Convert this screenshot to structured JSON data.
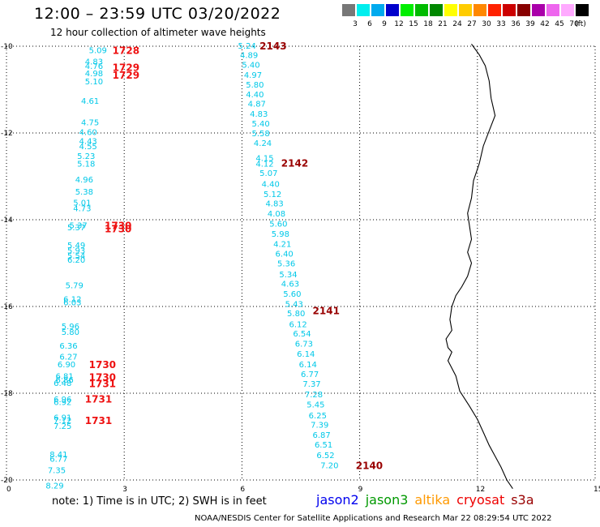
{
  "header": {
    "title": "12:00 – 23:59 UTC 03/20/2022",
    "subtitle": "12 hour collection of altimeter wave heights"
  },
  "legend": {
    "unit": "(ft)",
    "bins": [
      {
        "label": "3",
        "color": "#777777"
      },
      {
        "label": "6",
        "color": "#00eeee"
      },
      {
        "label": "9",
        "color": "#00aaee"
      },
      {
        "label": "12",
        "color": "#0000cc"
      },
      {
        "label": "15",
        "color": "#00ee00"
      },
      {
        "label": "18",
        "color": "#00bb00"
      },
      {
        "label": "21",
        "color": "#008800"
      },
      {
        "label": "24",
        "color": "#ffff00"
      },
      {
        "label": "27",
        "color": "#ffcc00"
      },
      {
        "label": "30",
        "color": "#ff8800"
      },
      {
        "label": "33",
        "color": "#ff2200"
      },
      {
        "label": "36",
        "color": "#cc0000"
      },
      {
        "label": "39",
        "color": "#880000"
      },
      {
        "label": "42",
        "color": "#aa00aa"
      },
      {
        "label": "45",
        "color": "#ee66ee"
      },
      {
        "label": "70",
        "color": "#ffaaff"
      },
      {
        "label": "",
        "color": "#000000"
      }
    ]
  },
  "axes": {
    "lat_labels": [
      "-10",
      "-12",
      "-14",
      "-16",
      "-18",
      "-20"
    ],
    "lon_labels": [
      "0",
      "3",
      "6",
      "9",
      "12",
      "15"
    ]
  },
  "tracks": {
    "west": {
      "color": "#00c8e8",
      "points": [
        {
          "lon": 2.1,
          "lat": -10.08,
          "v": "5.09"
        },
        {
          "lon": 2.0,
          "lat": -10.35,
          "v": "4.83"
        },
        {
          "lon": 2.0,
          "lat": -10.45,
          "v": "4.76"
        },
        {
          "lon": 2.0,
          "lat": -10.62,
          "v": "4.98"
        },
        {
          "lon": 2.0,
          "lat": -10.8,
          "v": "5.10"
        },
        {
          "lon": 1.9,
          "lat": -11.25,
          "v": "4.61"
        },
        {
          "lon": 1.9,
          "lat": -11.75,
          "v": "4.75"
        },
        {
          "lon": 1.85,
          "lat": -11.97,
          "v": "4.60"
        },
        {
          "lon": 1.85,
          "lat": -12.18,
          "v": "4.43"
        },
        {
          "lon": 1.85,
          "lat": -12.3,
          "v": "4.55"
        },
        {
          "lon": 1.8,
          "lat": -12.52,
          "v": "5.23"
        },
        {
          "lon": 1.8,
          "lat": -12.7,
          "v": "5.18"
        },
        {
          "lon": 1.75,
          "lat": -13.07,
          "v": "4.96"
        },
        {
          "lon": 1.75,
          "lat": -13.35,
          "v": "5.38"
        },
        {
          "lon": 1.7,
          "lat": -13.6,
          "v": "5.01"
        },
        {
          "lon": 1.7,
          "lat": -13.73,
          "v": "4.73"
        },
        {
          "lon": 1.6,
          "lat": -14.12,
          "v": "5.37"
        },
        {
          "lon": 1.55,
          "lat": -14.17,
          "v": "5.37"
        },
        {
          "lon": 1.55,
          "lat": -14.58,
          "v": "5.49"
        },
        {
          "lon": 1.55,
          "lat": -14.7,
          "v": "5.93"
        },
        {
          "lon": 1.55,
          "lat": -14.82,
          "v": "5.54"
        },
        {
          "lon": 1.55,
          "lat": -14.92,
          "v": "6.20"
        },
        {
          "lon": 1.5,
          "lat": -15.5,
          "v": "5.79"
        },
        {
          "lon": 1.45,
          "lat": -15.82,
          "v": "6.12"
        },
        {
          "lon": 1.45,
          "lat": -15.9,
          "v": "6.03"
        },
        {
          "lon": 1.4,
          "lat": -16.45,
          "v": "5.96"
        },
        {
          "lon": 1.4,
          "lat": -16.58,
          "v": "5.80"
        },
        {
          "lon": 1.35,
          "lat": -16.9,
          "v": "6.36"
        },
        {
          "lon": 1.35,
          "lat": -17.15,
          "v": "6.27"
        },
        {
          "lon": 1.3,
          "lat": -17.33,
          "v": "6.90"
        },
        {
          "lon": 1.25,
          "lat": -17.6,
          "v": "6.81"
        },
        {
          "lon": 1.25,
          "lat": -17.68,
          "v": "6.86"
        },
        {
          "lon": 1.2,
          "lat": -17.76,
          "v": "6.48"
        },
        {
          "lon": 1.2,
          "lat": -18.13,
          "v": "6.96"
        },
        {
          "lon": 1.2,
          "lat": -18.2,
          "v": "6.92"
        },
        {
          "lon": 1.2,
          "lat": -18.55,
          "v": "6.91"
        },
        {
          "lon": 1.2,
          "lat": -18.62,
          "v": "7.12"
        },
        {
          "lon": 1.2,
          "lat": -18.75,
          "v": "7.25"
        },
        {
          "lon": 1.1,
          "lat": -19.4,
          "v": "8.41"
        },
        {
          "lon": 1.1,
          "lat": -19.5,
          "v": "6.77"
        },
        {
          "lon": 1.05,
          "lat": -19.77,
          "v": "7.35"
        },
        {
          "lon": 1.0,
          "lat": -20.12,
          "v": "8.29"
        }
      ],
      "times": [
        {
          "lon": 2.7,
          "lat": -10.08,
          "t": "1728",
          "c": "#ee1111"
        },
        {
          "lon": 2.7,
          "lat": -10.48,
          "t": "1729",
          "c": "#ee1111"
        },
        {
          "lon": 2.7,
          "lat": -10.65,
          "t": "1729",
          "c": "#ee1111"
        },
        {
          "lon": 2.5,
          "lat": -14.12,
          "t": "1730",
          "c": "#ee1111"
        },
        {
          "lon": 2.5,
          "lat": -14.2,
          "t": "1730",
          "c": "#ee1111"
        },
        {
          "lon": 2.1,
          "lat": -17.33,
          "t": "1730",
          "c": "#ee1111"
        },
        {
          "lon": 2.1,
          "lat": -17.62,
          "t": "1730",
          "c": "#ee1111"
        },
        {
          "lon": 2.1,
          "lat": -17.77,
          "t": "1731",
          "c": "#ee1111"
        },
        {
          "lon": 2.0,
          "lat": -18.12,
          "t": "1731",
          "c": "#ee1111"
        },
        {
          "lon": 2.0,
          "lat": -18.62,
          "t": "1731",
          "c": "#ee1111"
        }
      ]
    },
    "east": {
      "color": "#00c8e8",
      "points": [
        {
          "lon": 5.9,
          "lat": -9.98,
          "v": "5.24"
        },
        {
          "lon": 5.95,
          "lat": -10.2,
          "v": "4.89"
        },
        {
          "lon": 6.0,
          "lat": -10.42,
          "v": "5.40"
        },
        {
          "lon": 6.05,
          "lat": -10.65,
          "v": "4.97"
        },
        {
          "lon": 6.1,
          "lat": -10.88,
          "v": "5.80"
        },
        {
          "lon": 6.1,
          "lat": -11.1,
          "v": "4.40"
        },
        {
          "lon": 6.15,
          "lat": -11.32,
          "v": "4.87"
        },
        {
          "lon": 6.2,
          "lat": -11.55,
          "v": "4.83"
        },
        {
          "lon": 6.25,
          "lat": -11.78,
          "v": "5.40"
        },
        {
          "lon": 6.25,
          "lat": -12.0,
          "v": "5.58"
        },
        {
          "lon": 6.3,
          "lat": -12.22,
          "v": "4.24"
        },
        {
          "lon": 6.35,
          "lat": -12.57,
          "v": "4.15"
        },
        {
          "lon": 6.35,
          "lat": -12.7,
          "v": "4.12"
        },
        {
          "lon": 6.45,
          "lat": -12.92,
          "v": "5.07"
        },
        {
          "lon": 6.5,
          "lat": -13.17,
          "v": "4.40"
        },
        {
          "lon": 6.55,
          "lat": -13.4,
          "v": "5.12"
        },
        {
          "lon": 6.6,
          "lat": -13.62,
          "v": "4.83"
        },
        {
          "lon": 6.65,
          "lat": -13.85,
          "v": "4.08"
        },
        {
          "lon": 6.7,
          "lat": -14.08,
          "v": "5.60"
        },
        {
          "lon": 6.75,
          "lat": -14.32,
          "v": "5.98"
        },
        {
          "lon": 6.8,
          "lat": -14.55,
          "v": "4.21"
        },
        {
          "lon": 6.85,
          "lat": -14.78,
          "v": "6.40"
        },
        {
          "lon": 6.9,
          "lat": -15.0,
          "v": "5.36"
        },
        {
          "lon": 6.95,
          "lat": -15.25,
          "v": "5.34"
        },
        {
          "lon": 7.0,
          "lat": -15.47,
          "v": "4.63"
        },
        {
          "lon": 7.05,
          "lat": -15.7,
          "v": "5.60"
        },
        {
          "lon": 7.1,
          "lat": -15.93,
          "v": "5.43"
        },
        {
          "lon": 7.15,
          "lat": -16.15,
          "v": "5.80"
        },
        {
          "lon": 7.2,
          "lat": -16.4,
          "v": "6.12"
        },
        {
          "lon": 7.3,
          "lat": -16.62,
          "v": "6.54"
        },
        {
          "lon": 7.35,
          "lat": -16.85,
          "v": "6.73"
        },
        {
          "lon": 7.4,
          "lat": -17.08,
          "v": "6.14"
        },
        {
          "lon": 7.45,
          "lat": -17.33,
          "v": "6.14"
        },
        {
          "lon": 7.5,
          "lat": -17.55,
          "v": "6.77"
        },
        {
          "lon": 7.55,
          "lat": -17.78,
          "v": "7.37"
        },
        {
          "lon": 7.6,
          "lat": -18.02,
          "v": "7.28"
        },
        {
          "lon": 7.65,
          "lat": -18.25,
          "v": "5.45"
        },
        {
          "lon": 7.7,
          "lat": -18.5,
          "v": "6.25"
        },
        {
          "lon": 7.75,
          "lat": -18.72,
          "v": "7.39"
        },
        {
          "lon": 7.8,
          "lat": -18.95,
          "v": "6.87"
        },
        {
          "lon": 7.85,
          "lat": -19.18,
          "v": "6.51"
        },
        {
          "lon": 7.9,
          "lat": -19.42,
          "v": "6.52"
        },
        {
          "lon": 8.0,
          "lat": -19.65,
          "v": "7.20"
        }
      ],
      "times": [
        {
          "lon": 6.45,
          "lat": -9.98,
          "t": "2143",
          "c": "#990000"
        },
        {
          "lon": 7.0,
          "lat": -12.68,
          "t": "2142",
          "c": "#990000"
        },
        {
          "lon": 7.8,
          "lat": -16.08,
          "t": "2141",
          "c": "#990000"
        },
        {
          "lon": 8.9,
          "lat": -19.65,
          "t": "2140",
          "c": "#990000"
        }
      ]
    }
  },
  "coast": [
    [
      11.85,
      -9.95
    ],
    [
      12.05,
      -10.2
    ],
    [
      12.2,
      -10.45
    ],
    [
      12.3,
      -10.8
    ],
    [
      12.35,
      -11.2
    ],
    [
      12.45,
      -11.6
    ],
    [
      12.3,
      -11.95
    ],
    [
      12.15,
      -12.3
    ],
    [
      12.05,
      -12.7
    ],
    [
      11.9,
      -13.1
    ],
    [
      11.85,
      -13.5
    ],
    [
      11.75,
      -13.85
    ],
    [
      11.8,
      -14.15
    ],
    [
      11.85,
      -14.45
    ],
    [
      11.75,
      -14.75
    ],
    [
      11.85,
      -15.0
    ],
    [
      11.75,
      -15.3
    ],
    [
      11.6,
      -15.55
    ],
    [
      11.45,
      -15.75
    ],
    [
      11.35,
      -16.0
    ],
    [
      11.3,
      -16.3
    ],
    [
      11.35,
      -16.55
    ],
    [
      11.2,
      -16.75
    ],
    [
      11.25,
      -16.95
    ],
    [
      11.35,
      -17.05
    ],
    [
      11.25,
      -17.25
    ],
    [
      11.45,
      -17.6
    ],
    [
      11.55,
      -17.95
    ],
    [
      11.8,
      -18.3
    ],
    [
      12.0,
      -18.6
    ],
    [
      12.15,
      -18.9
    ],
    [
      12.3,
      -19.2
    ],
    [
      12.45,
      -19.45
    ],
    [
      12.6,
      -19.7
    ],
    [
      12.75,
      -20.0
    ],
    [
      12.9,
      -20.2
    ]
  ],
  "footer": {
    "note": "note:  1) Time is in UTC;  2) SWH is in feet",
    "satellites": [
      {
        "name": "jason2",
        "color": "#0000ee"
      },
      {
        "name": "jason3",
        "color": "#009900"
      },
      {
        "name": "altika",
        "color": "#ff9900"
      },
      {
        "name": "cryosat",
        "color": "#ee0000"
      },
      {
        "name": "s3a",
        "color": "#990000"
      }
    ],
    "credit": "NOAA/NESDIS Center for Satellite Applications and Research    Mar 22 08:29:54 UTC 2022"
  }
}
